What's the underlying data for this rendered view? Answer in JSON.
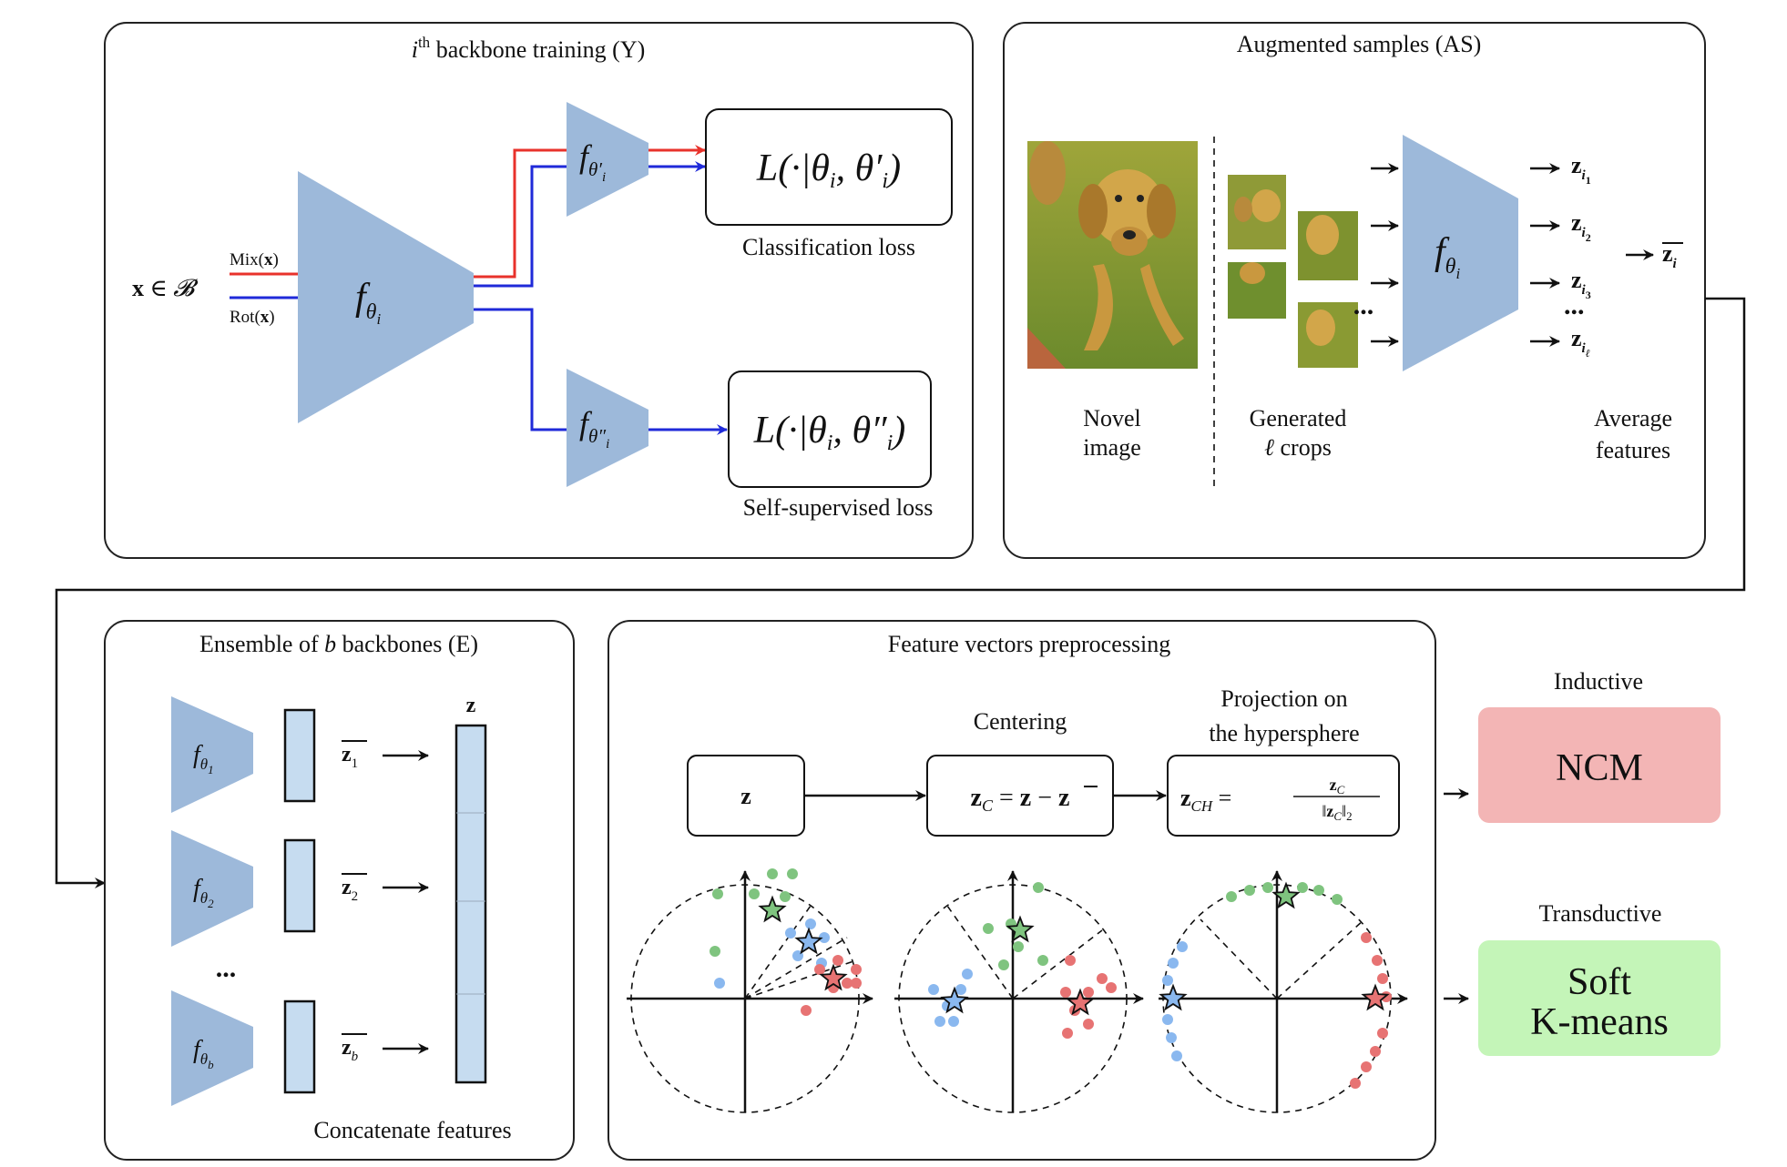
{
  "panel_y": {
    "title": "ith backbone training (Y)",
    "input": "x ∈ 𝓑",
    "mix": "Mix(x)",
    "rot": "Rot(x)",
    "backbone": "fθi",
    "head1": "fθ'i",
    "head2": "fθ''i",
    "loss1": "L(·|θi, θ'i)",
    "loss1_caption": "Classification loss",
    "loss2": "L(·|θi, θ''i)",
    "loss2_caption": "Self-supervised loss"
  },
  "panel_as": {
    "title": "Augmented samples (AS)",
    "novel_line1": "Novel",
    "novel_line2": "image",
    "crops_line1": "Generated",
    "crops_line2": "ℓ crops",
    "backbone": "fθi",
    "outputs": [
      "zi1",
      "zi2",
      "zi3",
      "ziℓ"
    ],
    "ellipsis": "...",
    "mean": "z̄i",
    "avg_line1": "Average",
    "avg_line2": "features"
  },
  "panel_e": {
    "title": "Ensemble of b backbones (E)",
    "backbones": [
      "fθ1",
      "fθ2",
      "fθb"
    ],
    "means": [
      "z̄1",
      "z̄2",
      "z̄b"
    ],
    "ellipsis": "...",
    "concat_label": "z",
    "caption": "Concatenate features"
  },
  "panel_fv": {
    "title": "Feature vectors preprocessing",
    "centering": "Centering",
    "proj_line1": "Projection on",
    "proj_line2": "the hypersphere",
    "box_z": "z",
    "box_c": "zC = z − z̄",
    "box_ch_lhs": "zCH =",
    "box_ch_num": "zC",
    "box_ch_den": "‖zC‖2"
  },
  "outputs": {
    "inductive_label": "Inductive",
    "ncm": "NCM",
    "transductive_label": "Transductive",
    "kmeans_line1": "Soft",
    "kmeans_line2": "K-means"
  },
  "colors": {
    "backbone": "#9db9da",
    "mix_line": "#e8322b",
    "rot_line": "#1f2ad9",
    "ncm_bg": "#f3b5b5",
    "kmeans_bg": "#c4f5b8",
    "class_green": "#7fc47f",
    "class_blue": "#8ab8ef",
    "class_red": "#e77373"
  }
}
